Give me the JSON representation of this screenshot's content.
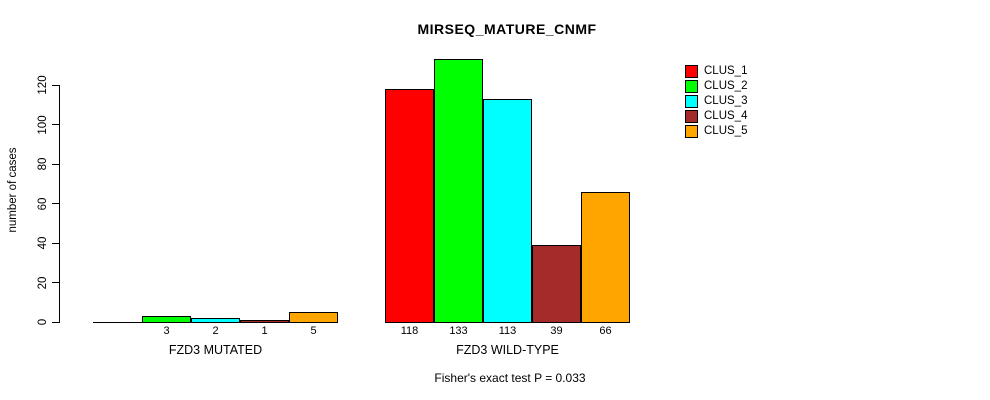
{
  "chart_data": {
    "type": "bar",
    "title": "MIRSEQ_MATURE_CNMF",
    "ylabel": "number of cases",
    "xlabel": "",
    "footnote": "Fisher's exact test P = 0.033",
    "ylim": [
      0,
      133
    ],
    "y_ticks": [
      0,
      20,
      40,
      60,
      80,
      100,
      120
    ],
    "grid": false,
    "legend_position": "right",
    "series": [
      {
        "name": "CLUS_1",
        "color": "#FF0000"
      },
      {
        "name": "CLUS_2",
        "color": "#00FF00"
      },
      {
        "name": "CLUS_3",
        "color": "#00FFFF"
      },
      {
        "name": "CLUS_4",
        "color": "#A52A2A"
      },
      {
        "name": "CLUS_5",
        "color": "#FFA500"
      }
    ],
    "groups": [
      {
        "label": "FZD3 MUTATED",
        "values": [
          0,
          3,
          2,
          1,
          5
        ],
        "value_labels": [
          "",
          "3",
          "2",
          "1",
          "5"
        ]
      },
      {
        "label": "FZD3 WILD-TYPE",
        "values": [
          118,
          133,
          113,
          39,
          66
        ],
        "value_labels": [
          "118",
          "133",
          "113",
          "39",
          "66"
        ]
      }
    ]
  }
}
